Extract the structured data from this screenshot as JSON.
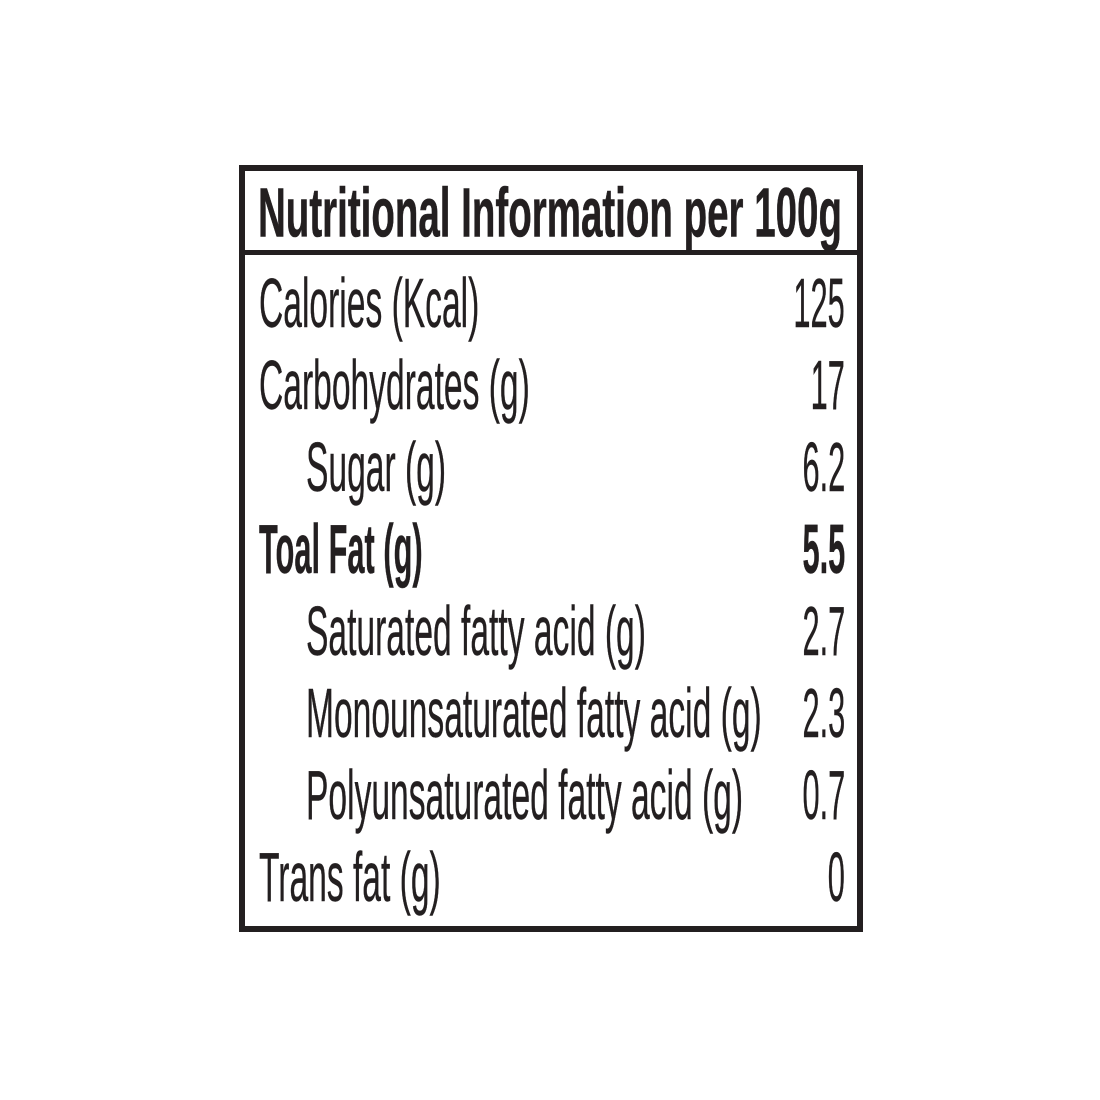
{
  "colors": {
    "text": "#231f20",
    "border": "#231f20",
    "background": "#ffffff"
  },
  "label": {
    "header": {
      "title": "Nutritional Information per 100g"
    },
    "rows": [
      {
        "label": "Calories (Kcal)",
        "value": "125",
        "indent": 0,
        "bold": false
      },
      {
        "label": "Carbohydrates (g)",
        "value": "17",
        "indent": 0,
        "bold": false
      },
      {
        "label": "Sugar (g)",
        "value": "6.2",
        "indent": 1,
        "bold": false
      },
      {
        "label": "Toal Fat (g)",
        "value": "5.5",
        "indent": 0,
        "bold": true
      },
      {
        "label": "Saturated fatty acid (g)",
        "value": "2.7",
        "indent": 1,
        "bold": false
      },
      {
        "label": "Monounsaturated fatty acid (g)",
        "value": "2.3",
        "indent": 1,
        "bold": false
      },
      {
        "label": "Polyunsaturated fatty acid (g)",
        "value": "0.7",
        "indent": 1,
        "bold": false
      },
      {
        "label": "Trans fat (g)",
        "value": "0",
        "indent": 0,
        "bold": false
      }
    ]
  }
}
